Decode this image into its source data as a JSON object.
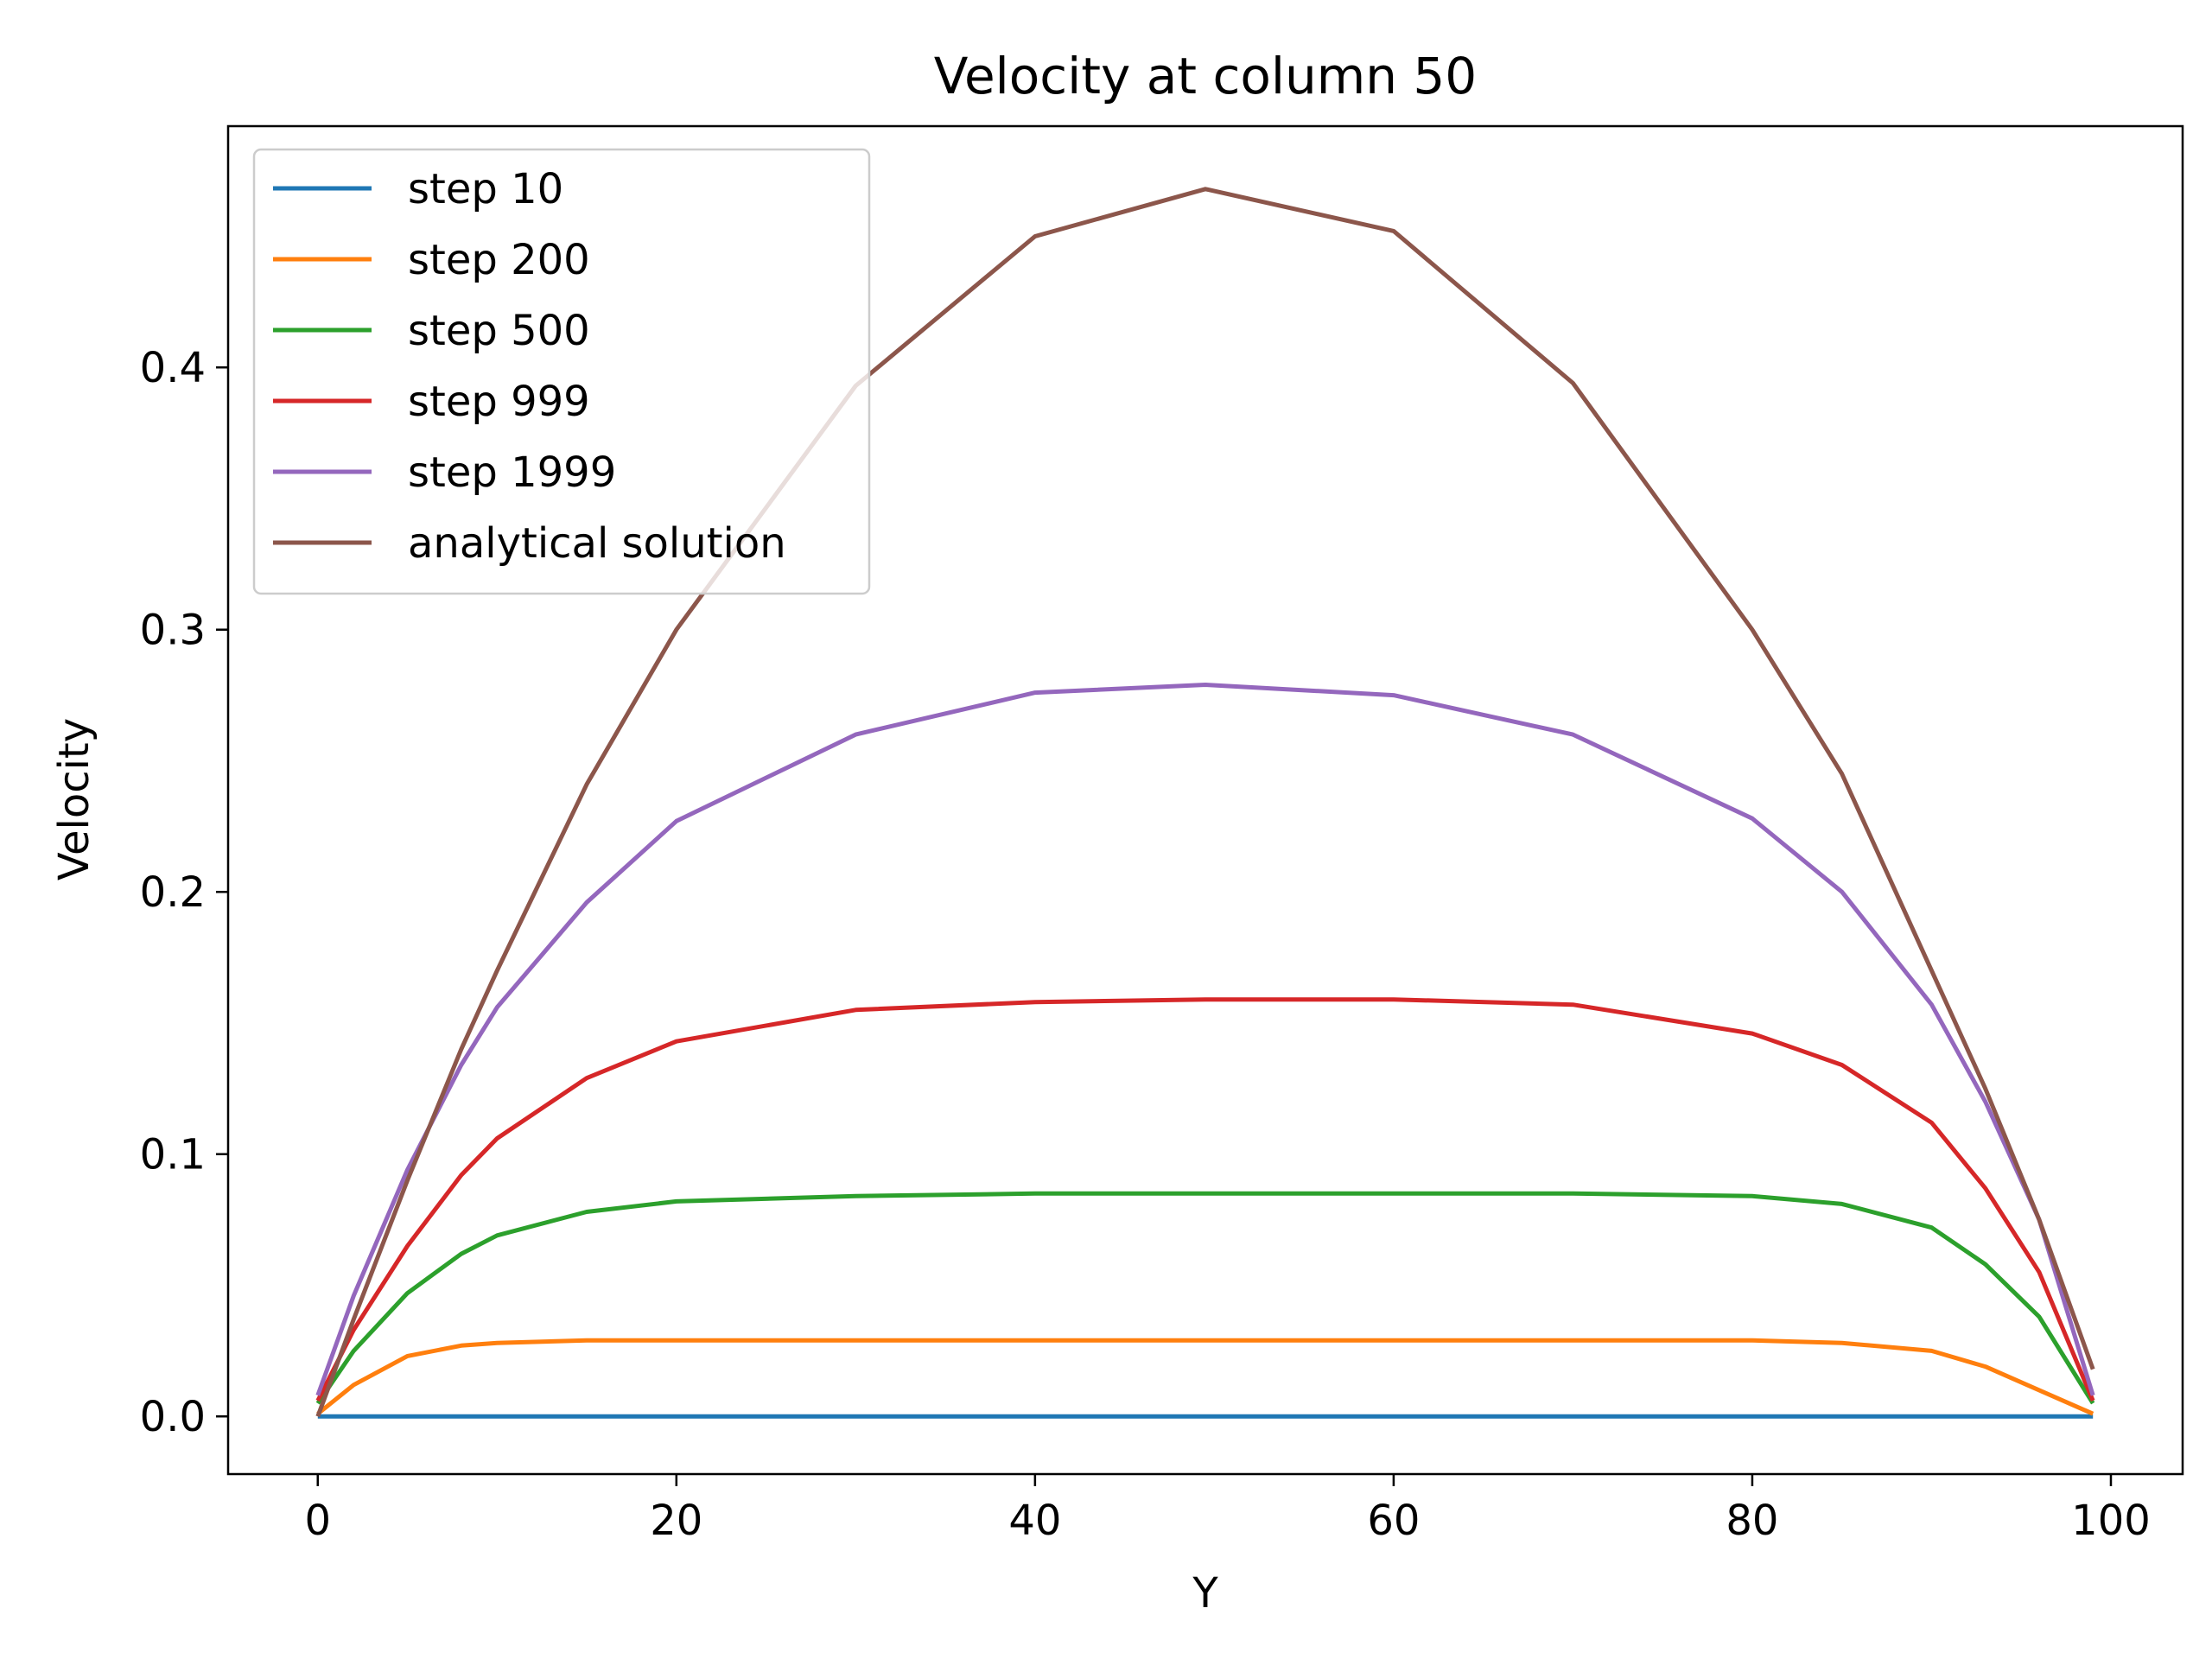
{
  "chart_data": {
    "type": "line",
    "title": "Velocity at column 50",
    "xlabel": "Y",
    "ylabel": "Velocity",
    "xlim": [
      -5,
      104
    ],
    "ylim": [
      -0.022,
      0.492
    ],
    "xticks": [
      0,
      20,
      40,
      60,
      80,
      100
    ],
    "yticks": [
      0.0,
      0.1,
      0.2,
      0.3,
      0.4
    ],
    "xtick_labels": [
      "0",
      "20",
      "40",
      "60",
      "80",
      "100"
    ],
    "ytick_labels": [
      "0.0",
      "0.1",
      "0.2",
      "0.3",
      "0.4"
    ],
    "grid": false,
    "legend_position": "upper-left",
    "x": [
      0,
      2,
      5,
      8,
      10,
      15,
      20,
      30,
      40,
      49.5,
      60,
      70,
      80,
      85,
      90,
      93,
      96,
      99
    ],
    "series": [
      {
        "name": "step 10",
        "color": "#1f77b4",
        "values": [
          0.0,
          0.0,
          0.0,
          0.0,
          0.0,
          0.0,
          0.0,
          0.0,
          0.0,
          0.0,
          0.0,
          0.0,
          0.0,
          0.0,
          0.0,
          0.0,
          0.0,
          0.0
        ]
      },
      {
        "name": "step 200",
        "color": "#ff7f0e",
        "values": [
          0.001,
          0.012,
          0.023,
          0.027,
          0.028,
          0.029,
          0.029,
          0.029,
          0.029,
          0.029,
          0.029,
          0.029,
          0.029,
          0.028,
          0.025,
          0.019,
          0.01,
          0.001
        ]
      },
      {
        "name": "step 500",
        "color": "#2ca02c",
        "values": [
          0.005,
          0.025,
          0.047,
          0.062,
          0.069,
          0.078,
          0.082,
          0.084,
          0.085,
          0.085,
          0.085,
          0.085,
          0.084,
          0.081,
          0.072,
          0.058,
          0.038,
          0.005
        ]
      },
      {
        "name": "step 999",
        "color": "#d62728",
        "values": [
          0.006,
          0.033,
          0.065,
          0.092,
          0.106,
          0.129,
          0.143,
          0.155,
          0.158,
          0.159,
          0.159,
          0.157,
          0.146,
          0.134,
          0.112,
          0.087,
          0.055,
          0.006
        ]
      },
      {
        "name": "step 1999",
        "color": "#9467bd",
        "values": [
          0.008,
          0.046,
          0.094,
          0.134,
          0.156,
          0.196,
          0.227,
          0.26,
          0.276,
          0.279,
          0.275,
          0.26,
          0.228,
          0.2,
          0.157,
          0.12,
          0.075,
          0.008
        ]
      },
      {
        "name": "analytical solution",
        "color": "#8c564b",
        "values": [
          0.0,
          0.037,
          0.09,
          0.14,
          0.17,
          0.241,
          0.3,
          0.393,
          0.45,
          0.468,
          0.452,
          0.394,
          0.3,
          0.245,
          0.17,
          0.125,
          0.075,
          0.018
        ]
      }
    ]
  }
}
